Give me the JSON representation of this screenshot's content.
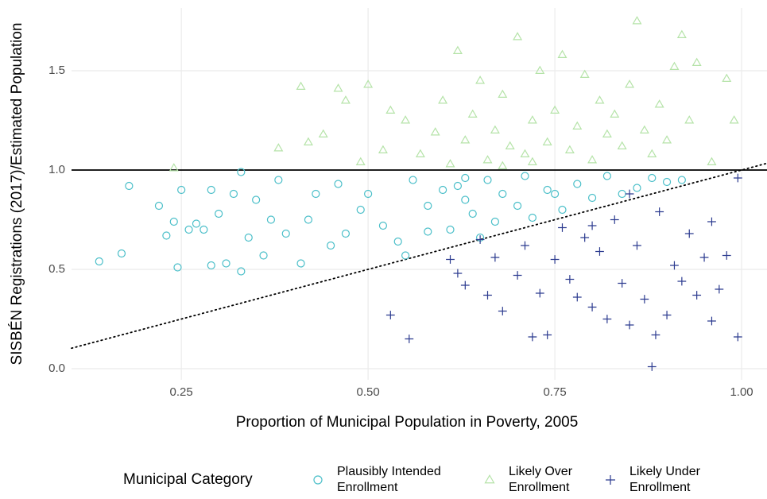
{
  "chart_data": {
    "type": "scatter",
    "x_label": "Proportion of Municipal Population in Poverty, 2005",
    "y_label": "SISBÉN Registrations (2017)/Estimated Population",
    "legend_title": "Municipal Category",
    "legend_position": "bottom",
    "grid": true,
    "xlim": [
      0.103,
      1.034
    ],
    "ylim": [
      -0.056,
      1.816
    ],
    "xticks": [
      {
        "value": 0.25,
        "label": "0.25"
      },
      {
        "value": 0.5,
        "label": "0.50"
      },
      {
        "value": 0.75,
        "label": "0.75"
      },
      {
        "value": 1,
        "label": "1.00"
      }
    ],
    "yticks": [
      {
        "value": 0,
        "label": "0.0"
      },
      {
        "value": 0.5,
        "label": "0.5"
      },
      {
        "value": 1,
        "label": "1.0"
      },
      {
        "value": 1.5,
        "label": "1.5"
      }
    ],
    "reference_lines": [
      {
        "style": "solid",
        "y": 1
      },
      {
        "style": "dotted",
        "slope": 1,
        "intercept": 0
      }
    ],
    "series": [
      {
        "name": "Plausibly Intended Enrollment",
        "color": "#4bbfc9",
        "marker": "circle",
        "x": [
          0.14,
          0.17,
          0.18,
          0.22,
          0.23,
          0.24,
          0.245,
          0.25,
          0.26,
          0.27,
          0.28,
          0.29,
          0.29,
          0.3,
          0.31,
          0.32,
          0.33,
          0.33,
          0.34,
          0.35,
          0.36,
          0.37,
          0.38,
          0.39,
          0.41,
          0.42,
          0.43,
          0.45,
          0.46,
          0.47,
          0.49,
          0.5,
          0.52,
          0.54,
          0.55,
          0.56,
          0.58,
          0.6,
          0.61,
          0.62,
          0.63,
          0.64,
          0.65,
          0.66,
          0.67,
          0.68,
          0.7,
          0.71,
          0.72,
          0.74,
          0.76,
          0.78,
          0.8,
          0.82,
          0.84,
          0.86,
          0.88,
          0.9,
          0.92,
          0.63,
          0.58,
          0.75
        ],
        "values": [
          0.54,
          0.58,
          0.92,
          0.82,
          0.67,
          0.74,
          0.51,
          0.9,
          0.7,
          0.73,
          0.7,
          0.52,
          0.9,
          0.78,
          0.53,
          0.88,
          0.49,
          0.99,
          0.66,
          0.85,
          0.57,
          0.75,
          0.95,
          0.68,
          0.53,
          0.75,
          0.88,
          0.62,
          0.93,
          0.68,
          0.8,
          0.88,
          0.72,
          0.64,
          0.57,
          0.95,
          0.82,
          0.9,
          0.7,
          0.92,
          0.85,
          0.78,
          0.66,
          0.95,
          0.74,
          0.88,
          0.82,
          0.97,
          0.76,
          0.9,
          0.8,
          0.93,
          0.86,
          0.97,
          0.88,
          0.91,
          0.96,
          0.94,
          0.95,
          0.96,
          0.69,
          0.88
        ]
      },
      {
        "name": "Likely Over Enrollment",
        "color": "#b5e3a8",
        "marker": "triangle",
        "x": [
          0.24,
          0.38,
          0.41,
          0.42,
          0.44,
          0.46,
          0.47,
          0.49,
          0.5,
          0.52,
          0.53,
          0.55,
          0.57,
          0.59,
          0.6,
          0.62,
          0.63,
          0.64,
          0.65,
          0.66,
          0.67,
          0.68,
          0.69,
          0.7,
          0.71,
          0.72,
          0.73,
          0.74,
          0.75,
          0.76,
          0.77,
          0.78,
          0.79,
          0.8,
          0.81,
          0.82,
          0.83,
          0.84,
          0.85,
          0.86,
          0.87,
          0.88,
          0.89,
          0.9,
          0.91,
          0.92,
          0.93,
          0.94,
          0.96,
          0.98,
          0.99,
          0.68,
          0.72,
          0.61
        ],
        "values": [
          1.01,
          1.11,
          1.42,
          1.14,
          1.18,
          1.41,
          1.35,
          1.04,
          1.43,
          1.1,
          1.3,
          1.25,
          1.08,
          1.19,
          1.35,
          1.6,
          1.15,
          1.28,
          1.45,
          1.05,
          1.2,
          1.38,
          1.12,
          1.67,
          1.08,
          1.25,
          1.5,
          1.14,
          1.3,
          1.58,
          1.1,
          1.22,
          1.48,
          1.05,
          1.35,
          1.18,
          1.28,
          1.12,
          1.43,
          1.75,
          1.2,
          1.08,
          1.33,
          1.15,
          1.52,
          1.68,
          1.25,
          1.54,
          1.04,
          1.46,
          1.25,
          1.02,
          1.04,
          1.03
        ]
      },
      {
        "name": "Likely Under Enrollment",
        "color": "#2b3a8f",
        "marker": "plus",
        "x": [
          0.53,
          0.555,
          0.61,
          0.62,
          0.63,
          0.65,
          0.66,
          0.67,
          0.68,
          0.7,
          0.71,
          0.72,
          0.73,
          0.74,
          0.75,
          0.76,
          0.77,
          0.78,
          0.79,
          0.8,
          0.81,
          0.82,
          0.83,
          0.84,
          0.85,
          0.86,
          0.87,
          0.88,
          0.885,
          0.89,
          0.9,
          0.91,
          0.92,
          0.93,
          0.94,
          0.95,
          0.96,
          0.97,
          0.98,
          0.995,
          0.995,
          0.96,
          0.85,
          0.8
        ],
        "values": [
          0.27,
          0.15,
          0.55,
          0.48,
          0.42,
          0.65,
          0.37,
          0.56,
          0.29,
          0.47,
          0.62,
          0.16,
          0.38,
          0.17,
          0.55,
          0.71,
          0.45,
          0.36,
          0.66,
          0.31,
          0.59,
          0.25,
          0.75,
          0.43,
          0.22,
          0.62,
          0.35,
          0.01,
          0.17,
          0.79,
          0.27,
          0.52,
          0.44,
          0.68,
          0.37,
          0.56,
          0.24,
          0.4,
          0.57,
          0.96,
          0.16,
          0.74,
          0.88,
          0.72
        ]
      }
    ]
  }
}
